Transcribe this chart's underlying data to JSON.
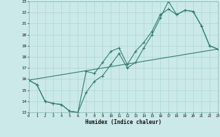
{
  "xlabel": "Humidex (Indice chaleur)",
  "xlim": [
    0,
    23
  ],
  "ylim": [
    13,
    23
  ],
  "yticks": [
    13,
    14,
    15,
    16,
    17,
    18,
    19,
    20,
    21,
    22,
    23
  ],
  "xticks": [
    0,
    1,
    2,
    3,
    4,
    5,
    6,
    7,
    8,
    9,
    10,
    11,
    12,
    13,
    14,
    15,
    16,
    17,
    18,
    19,
    20,
    21,
    22,
    23
  ],
  "bg_color": "#cce9e9",
  "grid_color": "#aad4d4",
  "line_color": "#2d7b6e",
  "line1_x": [
    0,
    1,
    2,
    3,
    4,
    5,
    6,
    7,
    8,
    9,
    10,
    11,
    12,
    13,
    14,
    15,
    16,
    17,
    18,
    19,
    20,
    21,
    22,
    23
  ],
  "line1_y": [
    15.9,
    15.5,
    14.0,
    13.8,
    13.7,
    13.1,
    13.0,
    14.8,
    15.8,
    16.3,
    17.3,
    18.3,
    17.0,
    17.5,
    18.8,
    20.0,
    21.5,
    23.0,
    21.8,
    22.2,
    22.1,
    20.8,
    19.0,
    18.7
  ],
  "line2_x": [
    0,
    1,
    2,
    3,
    4,
    5,
    6,
    7,
    8,
    9,
    10,
    11,
    12,
    13,
    14,
    15,
    16,
    17,
    18,
    19,
    20,
    21,
    22,
    23
  ],
  "line2_y": [
    15.9,
    15.5,
    14.0,
    13.8,
    13.7,
    13.1,
    13.0,
    16.7,
    16.5,
    17.5,
    18.5,
    18.8,
    17.3,
    18.5,
    19.3,
    20.3,
    21.8,
    22.3,
    21.8,
    22.2,
    22.1,
    20.8,
    19.0,
    18.7
  ],
  "line3_x": [
    0,
    23
  ],
  "line3_y": [
    15.9,
    18.7
  ]
}
